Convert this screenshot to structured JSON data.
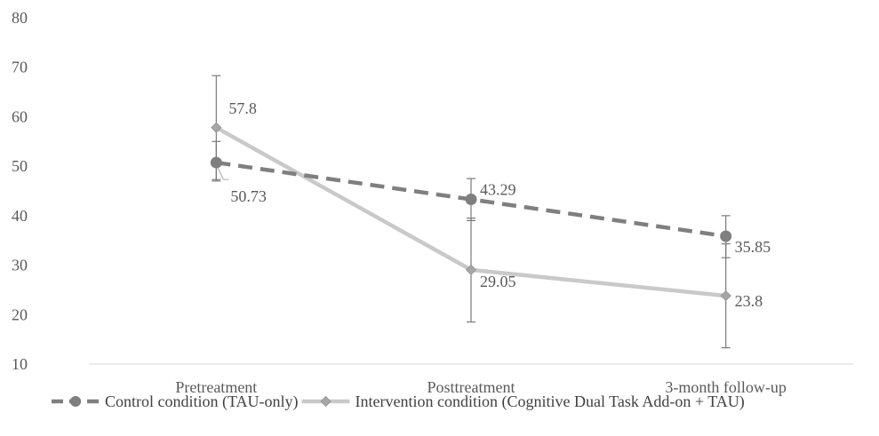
{
  "chart_data": {
    "type": "line",
    "categories": [
      "Pretreatment",
      "Posttreatment",
      "3-month follow-up"
    ],
    "ylim": [
      10,
      80
    ],
    "yticks": [
      "10",
      "20",
      "30",
      "40",
      "50",
      "60",
      "70",
      "80"
    ],
    "grid": false,
    "legend_position": "bottom",
    "series": [
      {
        "name": "Control condition (TAU-only)",
        "values": [
          50.73,
          43.29,
          35.85
        ],
        "labels": [
          "50.73",
          "43.29",
          "35.85"
        ],
        "error_low": [
          47.0,
          39.0,
          31.5
        ],
        "error_high": [
          55.0,
          47.5,
          40.0
        ],
        "color": "#7f7f7f",
        "line_style": "dashed",
        "marker": "circle"
      },
      {
        "name": "Intervention condition (Cognitive Dual Task Add-on + TAU)",
        "values": [
          57.8,
          29.05,
          23.8
        ],
        "labels": [
          "57.8",
          "29.05",
          "23.8"
        ],
        "error_low": [
          47.3,
          18.5,
          13.3
        ],
        "error_high": [
          68.3,
          39.5,
          34.3
        ],
        "color": "#c9c9c9",
        "line_style": "solid",
        "marker": "diamond"
      }
    ]
  }
}
